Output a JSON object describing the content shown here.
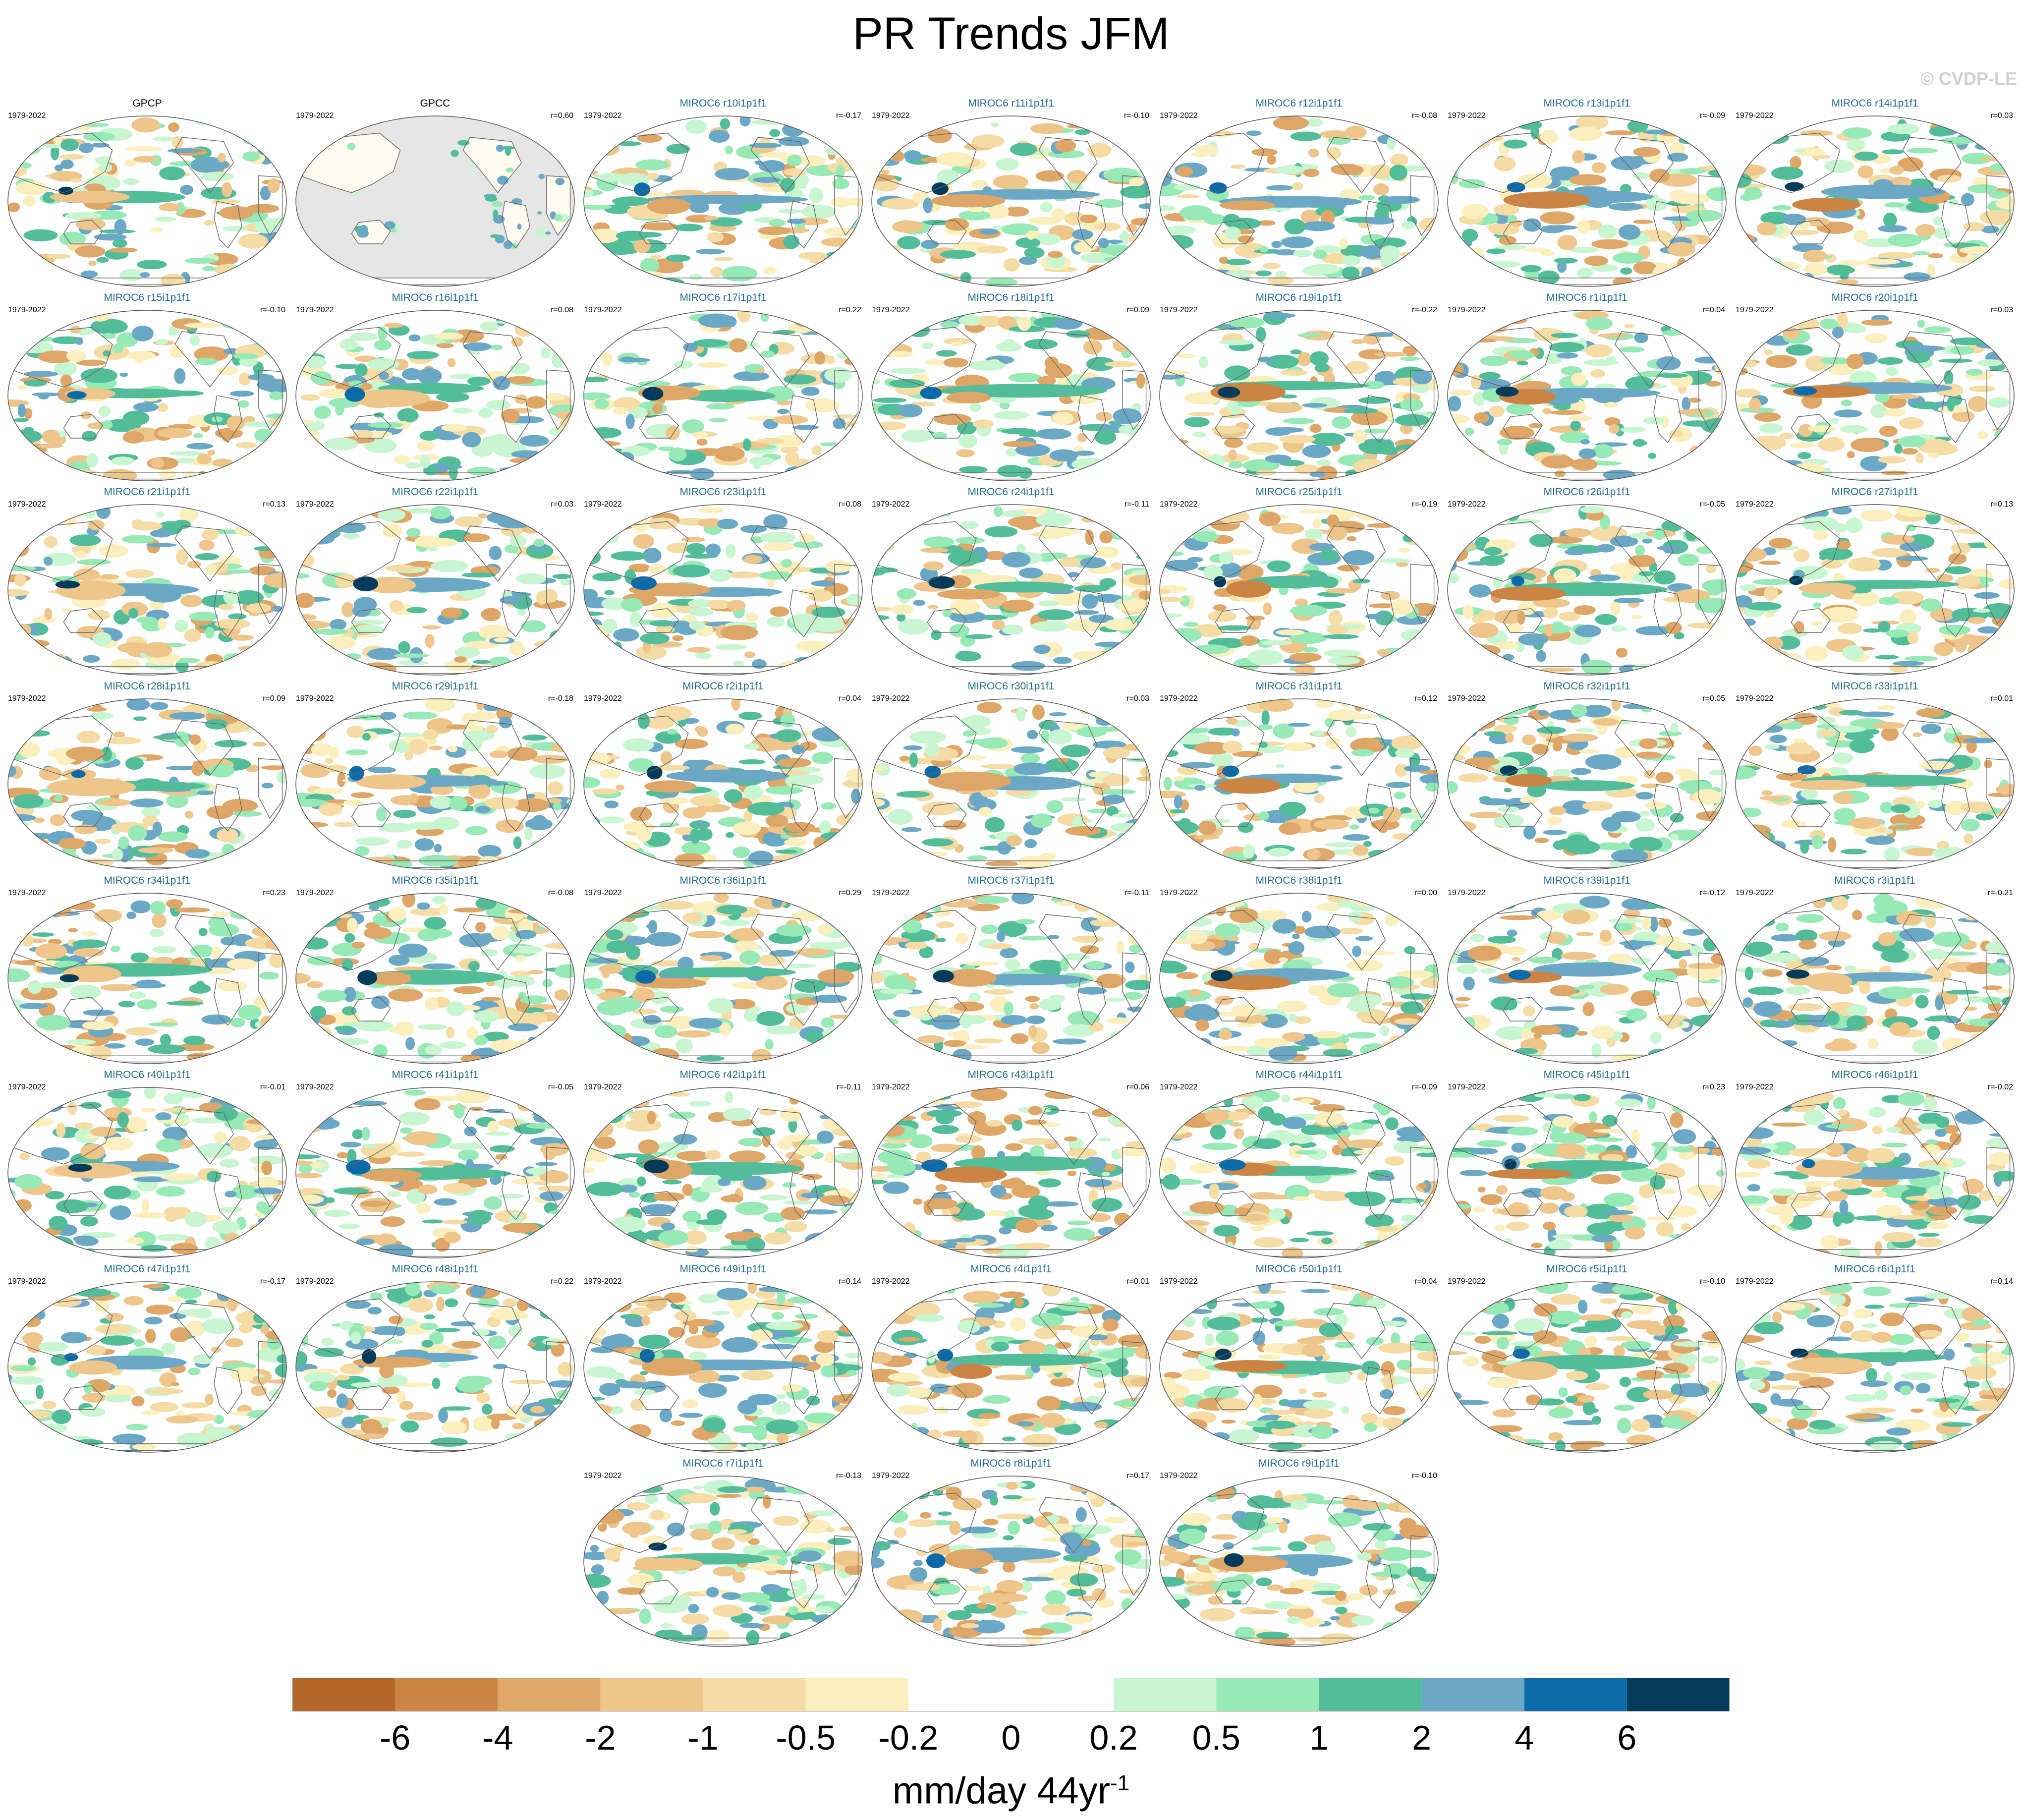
{
  "title": "PR Trends JFM",
  "watermark": "© CVDP-LE",
  "period": "1979-2022",
  "panels": [
    {
      "label": "GPCP",
      "r": "",
      "observed": true,
      "land_only": false
    },
    {
      "label": "GPCC",
      "r": "r=0.60",
      "observed": true,
      "land_only": true
    },
    {
      "label": "MIROC6 r10i1p1f1",
      "r": "r=-0.17"
    },
    {
      "label": "MIROC6 r11i1p1f1",
      "r": "r=-0.10"
    },
    {
      "label": "MIROC6 r12i1p1f1",
      "r": "r=-0.08"
    },
    {
      "label": "MIROC6 r13i1p1f1",
      "r": "r=-0.09"
    },
    {
      "label": "MIROC6 r14i1p1f1",
      "r": "r=0.03"
    },
    {
      "label": "MIROC6 r15i1p1f1",
      "r": "r=-0.10"
    },
    {
      "label": "MIROC6 r16i1p1f1",
      "r": "r=0.08"
    },
    {
      "label": "MIROC6 r17i1p1f1",
      "r": "r=0.22"
    },
    {
      "label": "MIROC6 r18i1p1f1",
      "r": "r=0.09"
    },
    {
      "label": "MIROC6 r19i1p1f1",
      "r": "r=-0.22"
    },
    {
      "label": "MIROC6 r1i1p1f1",
      "r": "r=0.04"
    },
    {
      "label": "MIROC6 r20i1p1f1",
      "r": "r=0.03"
    },
    {
      "label": "MIROC6 r21i1p1f1",
      "r": "r=0.13"
    },
    {
      "label": "MIROC6 r22i1p1f1",
      "r": "r=0.03"
    },
    {
      "label": "MIROC6 r23i1p1f1",
      "r": "r=0.08"
    },
    {
      "label": "MIROC6 r24i1p1f1",
      "r": "r=-0.11"
    },
    {
      "label": "MIROC6 r25i1p1f1",
      "r": "r=-0.19"
    },
    {
      "label": "MIROC6 r26i1p1f1",
      "r": "r=-0.05"
    },
    {
      "label": "MIROC6 r27i1p1f1",
      "r": "r=0.13"
    },
    {
      "label": "MIROC6 r28i1p1f1",
      "r": "r=0.09"
    },
    {
      "label": "MIROC6 r29i1p1f1",
      "r": "r=-0.18"
    },
    {
      "label": "MIROC6 r2i1p1f1",
      "r": "r=0.04"
    },
    {
      "label": "MIROC6 r30i1p1f1",
      "r": "r=0.03"
    },
    {
      "label": "MIROC6 r31i1p1f1",
      "r": "r=0.12"
    },
    {
      "label": "MIROC6 r32i1p1f1",
      "r": "r=0.05"
    },
    {
      "label": "MIROC6 r33i1p1f1",
      "r": "r=0.01"
    },
    {
      "label": "MIROC6 r34i1p1f1",
      "r": "r=0.23"
    },
    {
      "label": "MIROC6 r35i1p1f1",
      "r": "r=-0.08"
    },
    {
      "label": "MIROC6 r36i1p1f1",
      "r": "r=0.29"
    },
    {
      "label": "MIROC6 r37i1p1f1",
      "r": "r=-0.11"
    },
    {
      "label": "MIROC6 r38i1p1f1",
      "r": "r=0.00"
    },
    {
      "label": "MIROC6 r39i1p1f1",
      "r": "r=-0.12"
    },
    {
      "label": "MIROC6 r3i1p1f1",
      "r": "r=-0.21"
    },
    {
      "label": "MIROC6 r40i1p1f1",
      "r": "r=-0.01"
    },
    {
      "label": "MIROC6 r41i1p1f1",
      "r": "r=-0.05"
    },
    {
      "label": "MIROC6 r42i1p1f1",
      "r": "r=-0.11"
    },
    {
      "label": "MIROC6 r43i1p1f1",
      "r": "r=0.06"
    },
    {
      "label": "MIROC6 r44i1p1f1",
      "r": "r=-0.09"
    },
    {
      "label": "MIROC6 r45i1p1f1",
      "r": "r=0.23"
    },
    {
      "label": "MIROC6 r46i1p1f1",
      "r": "r=-0.02"
    },
    {
      "label": "MIROC6 r47i1p1f1",
      "r": "r=-0.17"
    },
    {
      "label": "MIROC6 r48i1p1f1",
      "r": "r=0.22"
    },
    {
      "label": "MIROC6 r49i1p1f1",
      "r": "r=0.14"
    },
    {
      "label": "MIROC6 r4i1p1f1",
      "r": "r=0.01"
    },
    {
      "label": "MIROC6 r50i1p1f1",
      "r": "r=0.04"
    },
    {
      "label": "MIROC6 r5i1p1f1",
      "r": "r=-0.10"
    },
    {
      "label": "MIROC6 r6i1p1f1",
      "r": "r=0.14"
    },
    {
      "label": "MIROC6 r7i1p1f1",
      "r": "r=-0.13"
    },
    {
      "label": "MIROC6 r8i1p1f1",
      "r": "r=0.17"
    },
    {
      "label": "MIROC6 r9i1p1f1",
      "r": "r=-0.10"
    }
  ],
  "colorbar": {
    "colors": [
      "#b5672a",
      "#cb8444",
      "#dea767",
      "#eec68c",
      "#f4dca4",
      "#fbf0bd",
      "#ffffff",
      "#ffffff",
      "#c7f6d0",
      "#97e9b5",
      "#52bd98",
      "#6aa8c6",
      "#0c6aa8",
      "#053b5a"
    ],
    "labels": [
      "-6",
      "-4",
      "-2",
      "-1",
      "-0.5",
      "-0.2",
      "0",
      "0.2",
      "0.5",
      "1",
      "2",
      "4",
      "6"
    ],
    "units": "mm/day 44yr",
    "units_superscript": "-1"
  },
  "map_colors": {
    "ocean_land_nodata": "#e6e6e6",
    "coastline": "#666666"
  }
}
